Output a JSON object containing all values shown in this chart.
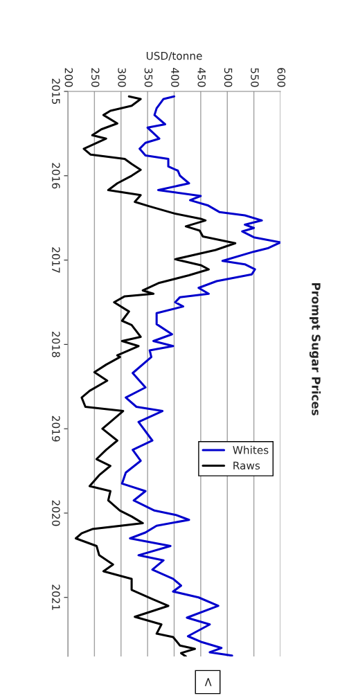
{
  "chart_data": {
    "type": "line",
    "title": "Prompt Sugar Prices",
    "xlabel": "USD/tonne",
    "ylim": [
      2021.7,
      2015
    ],
    "yticks": [
      2015,
      2016,
      2017,
      2018,
      2019,
      2020,
      2021
    ],
    "xlim": [
      200,
      600
    ],
    "xticks": [
      200,
      250,
      300,
      350,
      400,
      450,
      500,
      550,
      600
    ],
    "grid": "x",
    "legend": "right",
    "annotations": [
      "<"
    ],
    "series": [
      {
        "name": "Whites",
        "color": "#0000cc",
        "values": [
          2015.06,
          2015.09,
          2015.2,
          2015.28,
          2015.39,
          2015.43,
          2015.56,
          2015.61,
          2015.68,
          2015.76,
          2015.8,
          2015.89,
          2015.94,
          2016.0,
          2016.09,
          2016.17,
          2016.24,
          2016.29,
          2016.35,
          2016.43,
          2016.47,
          2016.53,
          2016.58,
          2016.62,
          2016.66,
          2016.73,
          2016.79,
          2016.86,
          2016.9,
          2017.01,
          2017.05,
          2017.11,
          2017.17,
          2017.25,
          2017.33,
          2017.4,
          2017.44,
          2017.5,
          2017.55,
          2017.63,
          2017.76,
          2017.88,
          2017.96,
          2018.02,
          2018.07,
          2018.15,
          2018.34,
          2018.51,
          2018.63,
          2018.74,
          2018.79,
          2018.92,
          2019.14,
          2019.25,
          2019.38,
          2019.52,
          2019.65,
          2019.74,
          2019.85,
          2019.97,
          2020.02,
          2020.08,
          2020.15,
          2020.23,
          2020.3,
          2020.39,
          2020.5,
          2020.56,
          2020.67,
          2020.78,
          2020.86,
          2020.93,
          2021.0,
          2021.1,
          2021.24,
          2021.32,
          2021.46,
          2021.53,
          2021.6,
          2021.65,
          2021.69
        ],
        "x": [
          400,
          380,
          367,
          363,
          383,
          350,
          372,
          346,
          335,
          346,
          389,
          389,
          407,
          411,
          428,
          370,
          450,
          430,
          463,
          485,
          533,
          565,
          533,
          550,
          528,
          550,
          600,
          576,
          550,
          491,
          533,
          552,
          546,
          480,
          446,
          465,
          411,
          402,
          417,
          367,
          367,
          396,
          361,
          398,
          354,
          357,
          322,
          346,
          309,
          329,
          378,
          333,
          359,
          322,
          337,
          309,
          302,
          346,
          324,
          363,
          402,
          428,
          367,
          346,
          317,
          393,
          333,
          380,
          359,
          398,
          413,
          398,
          446,
          483,
          424,
          467,
          426,
          452,
          489,
          467,
          509
        ]
      },
      {
        "name": "Raws",
        "color": "#000000",
        "values": [
          2015.06,
          2015.09,
          2015.17,
          2015.23,
          2015.28,
          2015.38,
          2015.45,
          2015.52,
          2015.56,
          2015.68,
          2015.75,
          2015.8,
          2015.86,
          2015.93,
          2016.0,
          2016.09,
          2016.17,
          2016.23,
          2016.31,
          2016.36,
          2016.45,
          2016.51,
          2016.53,
          2016.6,
          2016.65,
          2016.72,
          2016.8,
          2016.88,
          2016.99,
          2017.06,
          2017.11,
          2017.18,
          2017.27,
          2017.36,
          2017.4,
          2017.43,
          2017.5,
          2017.61,
          2017.72,
          2017.77,
          2017.91,
          2017.96,
          2018.02,
          2018.13,
          2018.15,
          2018.24,
          2018.33,
          2018.43,
          2018.55,
          2018.63,
          2018.74,
          2018.79,
          2018.92,
          2019.0,
          2019.14,
          2019.25,
          2019.36,
          2019.44,
          2019.55,
          2019.68,
          2019.74,
          2019.85,
          2019.97,
          2020.04,
          2020.12,
          2020.19,
          2020.24,
          2020.3,
          2020.39,
          2020.5,
          2020.61,
          2020.69,
          2020.78,
          2020.91,
          2021.02,
          2021.1,
          2021.23,
          2021.32,
          2021.43,
          2021.47,
          2021.57,
          2021.61,
          2021.66,
          2021.7
        ],
        "x": [
          315,
          337,
          320,
          280,
          267,
          293,
          263,
          246,
          272,
          230,
          243,
          307,
          320,
          337,
          320,
          293,
          276,
          337,
          326,
          352,
          402,
          450,
          459,
          422,
          448,
          454,
          515,
          478,
          402,
          450,
          465,
          428,
          372,
          341,
          361,
          307,
          287,
          315,
          302,
          320,
          337,
          302,
          333,
          293,
          298,
          272,
          250,
          274,
          241,
          226,
          233,
          304,
          280,
          265,
          293,
          272,
          254,
          280,
          259,
          241,
          280,
          276,
          298,
          320,
          341,
          246,
          226,
          215,
          254,
          259,
          285,
          267,
          320,
          320,
          359,
          389,
          326,
          376,
          367,
          398,
          411,
          439,
          413,
          422
        ]
      }
    ]
  }
}
